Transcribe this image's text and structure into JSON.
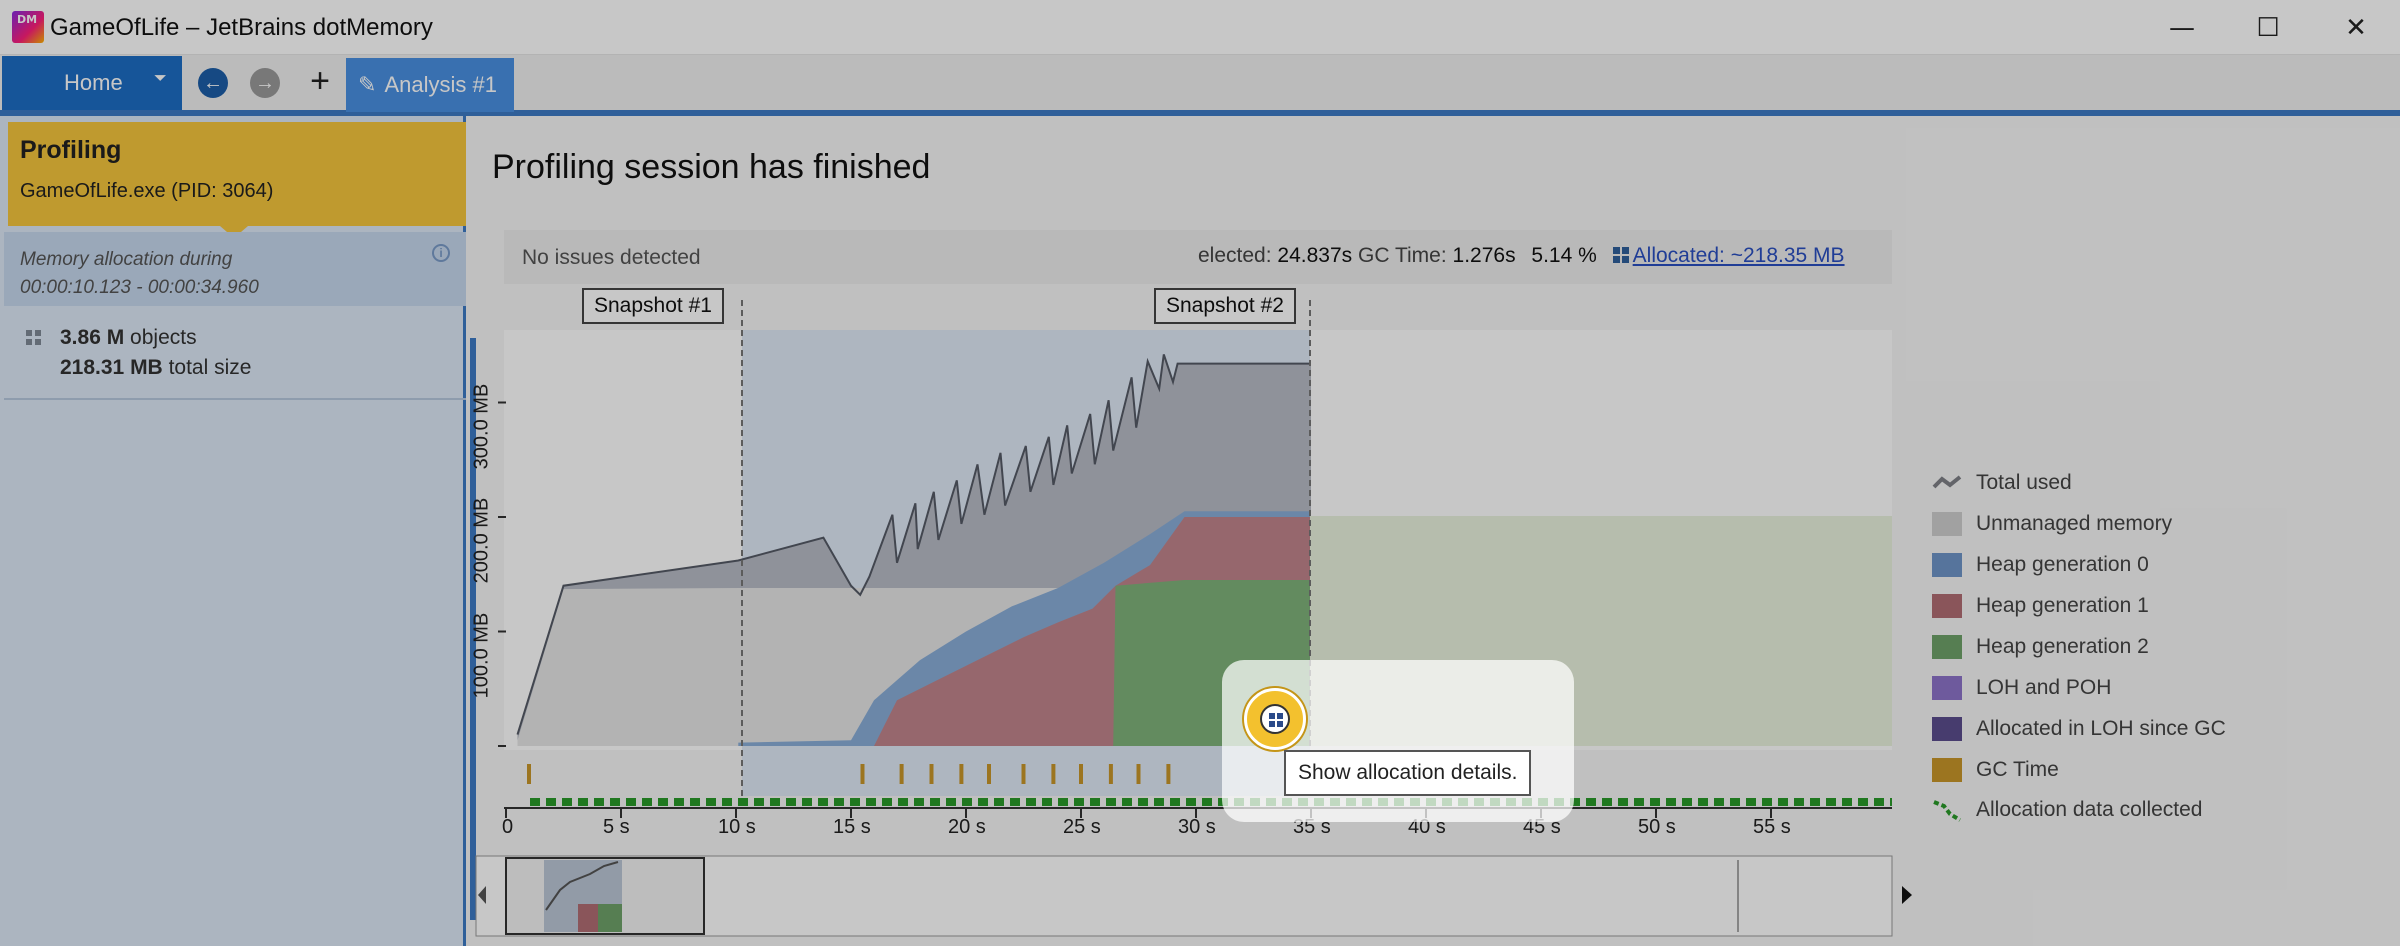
{
  "window": {
    "app_icon_text": "DM",
    "title": "GameOfLife – JetBrains dotMemory",
    "minimize_glyph": "—",
    "maximize_glyph": "☐",
    "close_glyph": "✕"
  },
  "ribbon": {
    "home_label": "Home",
    "dropdown_glyph": "⏷",
    "back_glyph": "←",
    "forward_glyph": "→",
    "add_glyph": "+",
    "tab_label": "Analysis #1",
    "tab_icon": "pencil-icon"
  },
  "left_panel": {
    "profiling_title": "Profiling",
    "process": "GameOfLife.exe (PID: 3064)",
    "allocation_title": "Memory allocation during",
    "allocation_range": "00:00:10.123 - 00:00:34.960",
    "info_glyph": "i",
    "objects_value": "3.86 M",
    "objects_label": "objects",
    "size_value": "218.31 MB",
    "size_label": "total size"
  },
  "main": {
    "session_title": "Profiling session has finished",
    "issues": "No issues detected",
    "stats": {
      "selected_label": "elected:",
      "selected_value": "24.837s",
      "gc_label": "GC Time:",
      "gc_value": "1.276s",
      "gc_percent": "5.14 %",
      "allocated_label": "Allocated: ~218.35 MB"
    },
    "snapshots": [
      "Snapshot #1",
      "Snapshot #2"
    ],
    "tooltip": "Show allocation details."
  },
  "legend": [
    {
      "label": "Total used",
      "color": "#7f8087"
    },
    {
      "label": "Unmanaged memory",
      "color": "#cfcfcf"
    },
    {
      "label": "Heap generation 0",
      "color": "#6f95c8"
    },
    {
      "label": "Heap generation 1",
      "color": "#b16d74"
    },
    {
      "label": "Heap generation 2",
      "color": "#6fa26a"
    },
    {
      "label": "LOH and POH",
      "color": "#8d74c9"
    },
    {
      "label": "Allocated in LOH since GC",
      "color": "#5b4e8e"
    },
    {
      "label": "GC Time",
      "color": "#c8962a"
    },
    {
      "label": "Allocation data collected",
      "color": "#2a9a2a"
    }
  ],
  "chart_data": {
    "type": "area",
    "title": "",
    "xlabel": "",
    "ylabel": "",
    "y_tick_labels": [
      "100.0 MB",
      "200.0 MB",
      "300.0 MB"
    ],
    "x_tick_labels": [
      "0",
      "5 s",
      "10 s",
      "15 s",
      "20 s",
      "25 s",
      "30 s",
      "35 s",
      "40 s",
      "45 s",
      "50 s",
      "55 s"
    ],
    "xlim": [
      0,
      60
    ],
    "ylim": [
      0,
      345
    ],
    "selection_range": [
      10.12,
      34.96
    ],
    "snapshot_times": [
      10.12,
      34.96
    ],
    "gc_event_times": [
      1.0,
      15.5,
      17.2,
      18.5,
      19.8,
      21.0,
      22.5,
      23.8,
      25.0,
      26.3,
      27.5,
      28.8
    ],
    "series": [
      {
        "name": "Total used",
        "x": [
          0.5,
          2.5,
          10.1,
          13.8,
          15.0,
          15.4,
          15.8,
          16.8,
          17.0,
          17.8,
          17.9,
          18.6,
          18.8,
          19.6,
          19.8,
          20.5,
          20.8,
          21.5,
          21.7,
          22.6,
          22.8,
          23.6,
          23.8,
          24.4,
          24.6,
          25.4,
          25.6,
          26.2,
          26.4,
          27.2,
          27.4,
          27.9,
          28.4,
          28.6,
          29.0,
          29.2,
          30.0,
          31.0,
          33.0,
          35.0
        ],
        "values": [
          10,
          140,
          162,
          182,
          140,
          132,
          148,
          202,
          160,
          212,
          172,
          222,
          180,
          232,
          194,
          246,
          202,
          256,
          210,
          262,
          222,
          270,
          228,
          280,
          238,
          290,
          246,
          302,
          258,
          322,
          278,
          336,
          312,
          342,
          318,
          334,
          334,
          334,
          334,
          334
        ]
      },
      {
        "name": "Unmanaged memory",
        "x": [
          0.5,
          2.5,
          10.1,
          35.0
        ],
        "values": [
          5,
          137,
          138,
          138
        ]
      },
      {
        "name": "Heap generation 0",
        "x": [
          10.1,
          15.0,
          16.0,
          18.0,
          20.0,
          22.0,
          24.0,
          26.0,
          28.0,
          29.5,
          35.0
        ],
        "values": [
          3,
          5,
          40,
          75,
          100,
          122,
          138,
          160,
          185,
          205,
          205
        ]
      },
      {
        "name": "Heap generation 1",
        "x": [
          10.1,
          16.0,
          17.0,
          19.0,
          21.0,
          22.5,
          24.0,
          25.5,
          26.5,
          28.0,
          29.5,
          35.0
        ],
        "values": [
          0,
          0,
          40,
          60,
          80,
          95,
          108,
          120,
          140,
          158,
          200,
          200
        ]
      },
      {
        "name": "Heap generation 2",
        "x": [
          10.1,
          26.4,
          26.5,
          29.5,
          35.0
        ],
        "values": [
          0,
          0,
          140,
          145,
          145
        ]
      }
    ]
  }
}
